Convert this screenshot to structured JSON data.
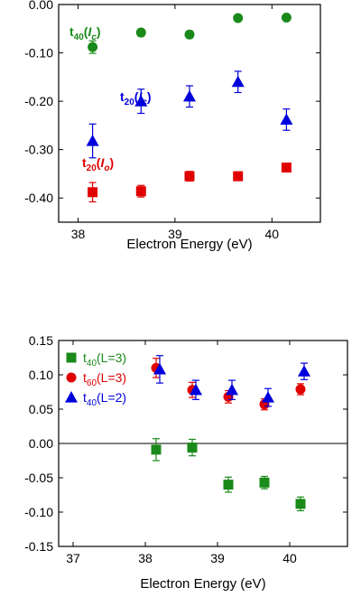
{
  "chart_data": [
    {
      "type": "scatter",
      "title": "",
      "xlabel": "Electron Energy (eV)",
      "ylabel": "",
      "xlim": [
        37.8,
        40.5
      ],
      "ylim": [
        -0.45,
        0.0
      ],
      "xticks": [
        "38",
        "39",
        "40"
      ],
      "xtick_values": [
        38,
        39,
        40
      ],
      "yticks": [
        "0.00",
        "-0.10",
        "-0.20",
        "-0.30",
        "-0.40"
      ],
      "ytick_values": [
        0.0,
        -0.1,
        -0.2,
        -0.3,
        -0.4
      ],
      "grid": false,
      "series": [
        {
          "name": "t40(Ic)",
          "label_main": "t",
          "label_sub": "40",
          "label_paren": "I",
          "label_paren_sub": "c",
          "color": "#1a8a1a",
          "marker": "circle",
          "x": [
            38.15,
            38.65,
            39.15,
            39.65,
            40.15
          ],
          "y": [
            -0.088,
            -0.058,
            -0.062,
            -0.028,
            -0.027
          ],
          "err": [
            0.013,
            0.007,
            0.007,
            0.004,
            0.003
          ]
        },
        {
          "name": "t20(Ic)",
          "label_main": "t",
          "label_sub": "20",
          "label_paren": "I",
          "label_paren_sub": "c",
          "color": "#0000dd",
          "marker": "triangle",
          "x": [
            38.15,
            38.65,
            39.15,
            39.65,
            40.15
          ],
          "y": [
            -0.282,
            -0.2,
            -0.19,
            -0.16,
            -0.238
          ],
          "err": [
            0.035,
            0.025,
            0.022,
            0.022,
            0.022
          ]
        },
        {
          "name": "t20(Io)",
          "label_main": "t",
          "label_sub": "20",
          "label_paren": "I",
          "label_paren_sub": "o",
          "color": "#e00000",
          "marker": "square",
          "x": [
            38.15,
            38.65,
            39.15,
            39.65,
            40.15
          ],
          "y": [
            -0.388,
            -0.386,
            -0.355,
            -0.355,
            -0.337
          ],
          "err": [
            0.02,
            0.012,
            0.01,
            0.009,
            0.007
          ]
        }
      ]
    },
    {
      "type": "scatter",
      "title": "",
      "xlabel": "Electron Energy (eV)",
      "ylabel": "",
      "xlim": [
        36.8,
        40.8
      ],
      "ylim": [
        -0.15,
        0.15
      ],
      "xticks": [
        "37",
        "38",
        "39",
        "40"
      ],
      "xtick_values": [
        37,
        38,
        39,
        40
      ],
      "yticks": [
        "0.15",
        "0.10",
        "0.05",
        "0.00",
        "-0.05",
        "-0.10",
        "-0.15"
      ],
      "ytick_values": [
        0.15,
        0.1,
        0.05,
        0.0,
        -0.05,
        -0.1,
        -0.15
      ],
      "grid": false,
      "zero_line": true,
      "legend_position": "top-left",
      "series": [
        {
          "name": "t40(L=3)",
          "label_main": "t",
          "label_sub": "40",
          "label_tail": "(L=3)",
          "color": "#1a8a1a",
          "marker": "square",
          "x": [
            38.15,
            38.65,
            39.15,
            39.65,
            40.15
          ],
          "y": [
            -0.009,
            -0.006,
            -0.06,
            -0.057,
            -0.088
          ],
          "err": [
            0.016,
            0.012,
            0.011,
            0.009,
            0.01
          ]
        },
        {
          "name": "t60(L=3)",
          "label_main": "t",
          "label_sub": "60",
          "label_tail": "(L=3)",
          "color": "#e00000",
          "marker": "circle",
          "x": [
            38.15,
            38.65,
            39.15,
            39.65,
            40.15
          ],
          "y": [
            0.11,
            0.078,
            0.068,
            0.057,
            0.079
          ],
          "err": [
            0.014,
            0.011,
            0.009,
            0.008,
            0.008
          ]
        },
        {
          "name": "t40(L=2)",
          "label_main": "t",
          "label_sub": "40",
          "label_tail": "(L=2)",
          "color": "#0000dd",
          "marker": "triangle",
          "x": [
            38.2,
            38.7,
            39.2,
            39.7,
            40.2
          ],
          "y": [
            0.108,
            0.078,
            0.078,
            0.067,
            0.105
          ],
          "err": [
            0.02,
            0.014,
            0.014,
            0.013,
            0.012
          ]
        }
      ]
    }
  ]
}
